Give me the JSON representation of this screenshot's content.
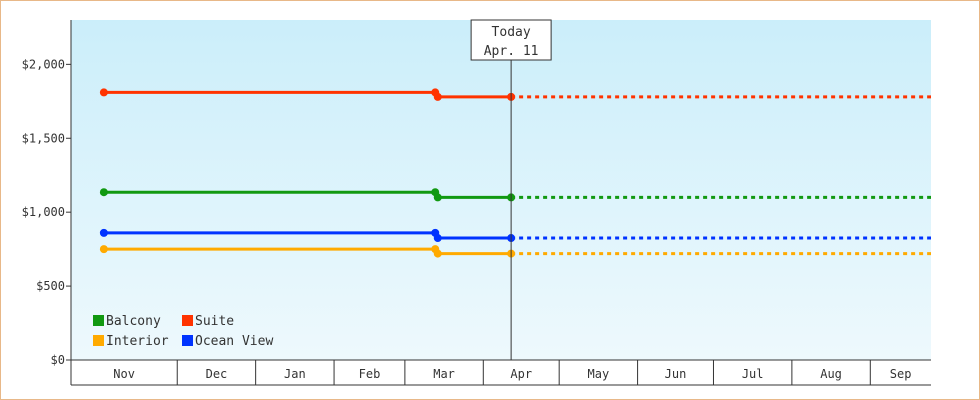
{
  "chart_data": {
    "type": "line",
    "title": "",
    "xlabel": "",
    "ylabel": "",
    "ylim": [
      0,
      2300
    ],
    "y_ticks": [
      {
        "value": 0,
        "label": "$0"
      },
      {
        "value": 500,
        "label": "$500"
      },
      {
        "value": 1000,
        "label": "$1,000"
      },
      {
        "value": 1500,
        "label": "$1,500"
      },
      {
        "value": 2000,
        "label": "$2,000"
      }
    ],
    "x_range": [
      "2024-10-19",
      "2025-09-24"
    ],
    "months": [
      {
        "label": "Nov",
        "start": "2024-10-19",
        "end": "2024-11-30"
      },
      {
        "label": "Dec",
        "start": "2024-11-30",
        "end": "2024-12-31"
      },
      {
        "label": "Jan",
        "start": "2024-12-31",
        "end": "2025-01-31"
      },
      {
        "label": "Feb",
        "start": "2025-01-31",
        "end": "2025-02-28"
      },
      {
        "label": "Mar",
        "start": "2025-02-28",
        "end": "2025-03-31"
      },
      {
        "label": "Apr",
        "start": "2025-03-31",
        "end": "2025-04-30"
      },
      {
        "label": "May",
        "start": "2025-04-30",
        "end": "2025-05-31"
      },
      {
        "label": "Jun",
        "start": "2025-05-31",
        "end": "2025-06-30"
      },
      {
        "label": "Jul",
        "start": "2025-06-30",
        "end": "2025-07-31"
      },
      {
        "label": "Aug",
        "start": "2025-07-31",
        "end": "2025-08-31"
      },
      {
        "label": "Sep",
        "start": "2025-08-31",
        "end": "2025-09-24"
      }
    ],
    "today": {
      "line1": "Today",
      "line2": "Apr. 11",
      "date": "2025-04-11"
    },
    "projection_end": "2025-09-24",
    "legend_position": "bottom-left",
    "grid": false,
    "series": [
      {
        "name": "Balcony",
        "color": "#119911",
        "points": [
          {
            "date": "2024-11-01",
            "value": 1135
          },
          {
            "date": "2025-03-12",
            "value": 1135
          },
          {
            "date": "2025-03-13",
            "value": 1100
          },
          {
            "date": "2025-04-11",
            "value": 1100
          }
        ]
      },
      {
        "name": "Suite",
        "color": "#ff3300",
        "points": [
          {
            "date": "2024-11-01",
            "value": 1810
          },
          {
            "date": "2025-03-12",
            "value": 1810
          },
          {
            "date": "2025-03-13",
            "value": 1780
          },
          {
            "date": "2025-04-11",
            "value": 1780
          }
        ]
      },
      {
        "name": "Interior",
        "color": "#ffaa00",
        "points": [
          {
            "date": "2024-11-01",
            "value": 750
          },
          {
            "date": "2025-03-12",
            "value": 750
          },
          {
            "date": "2025-03-13",
            "value": 720
          },
          {
            "date": "2025-04-11",
            "value": 720
          }
        ]
      },
      {
        "name": "Ocean View",
        "color": "#0033ff",
        "points": [
          {
            "date": "2024-11-01",
            "value": 860
          },
          {
            "date": "2025-03-12",
            "value": 860
          },
          {
            "date": "2025-03-13",
            "value": 825
          },
          {
            "date": "2025-04-11",
            "value": 825
          }
        ]
      }
    ],
    "colors": {
      "background_top": "#cbeefa",
      "background_bottom": "#eef9fd",
      "axis": "#333333",
      "frame_border": "#e8b888"
    }
  }
}
